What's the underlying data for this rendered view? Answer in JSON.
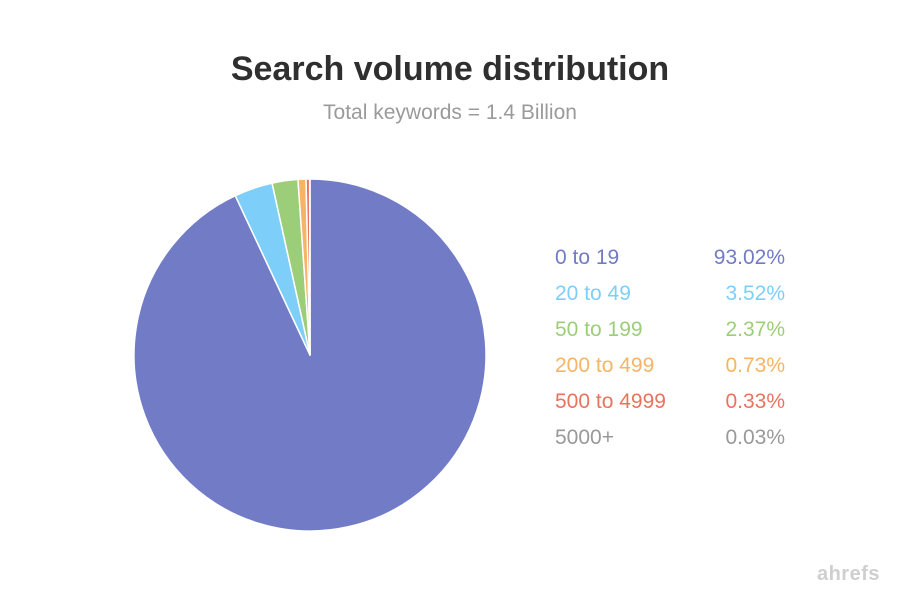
{
  "chart_data": {
    "type": "pie",
    "title": "Search volume distribution",
    "subtitle": "Total keywords = 1.4 Billion",
    "legend_position": "right",
    "slices": [
      {
        "label": "0 to 19",
        "value": 93.02,
        "display": "93.02%",
        "color": "#717BC6"
      },
      {
        "label": "20 to 49",
        "value": 3.52,
        "display": "3.52%",
        "color": "#7DCFFA"
      },
      {
        "label": "50 to 199",
        "value": 2.37,
        "display": "2.37%",
        "color": "#9CCE7A"
      },
      {
        "label": "200 to 499",
        "value": 0.73,
        "display": "0.73%",
        "color": "#F5B466"
      },
      {
        "label": "500 to 4999",
        "value": 0.33,
        "display": "0.33%",
        "color": "#E8735E"
      },
      {
        "label": "5000+",
        "value": 0.03,
        "display": "0.03%",
        "color": "#999999"
      }
    ]
  },
  "brand": {
    "logo_text": "ahrefs"
  }
}
